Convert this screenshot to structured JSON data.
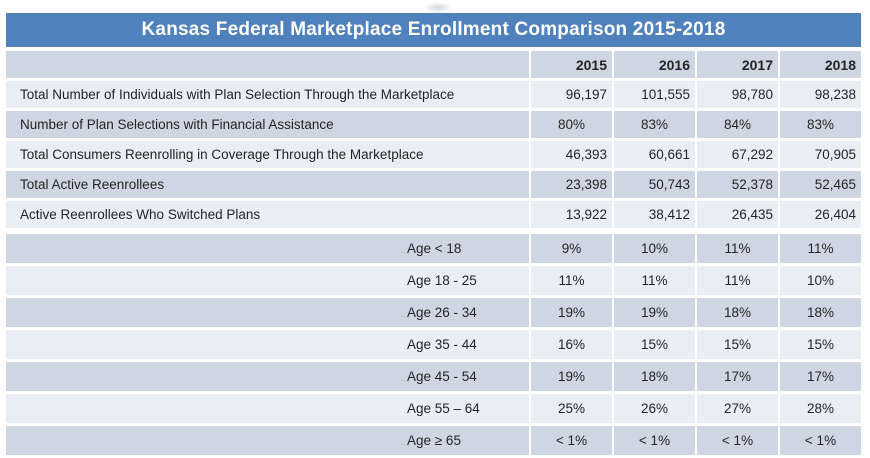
{
  "title": "Kansas Federal Marketplace Enrollment Comparison 2015-2018",
  "colors": {
    "title_bg": "#4F81BD",
    "title_text": "#FFFFFF",
    "band_dark": "#CED6E4",
    "band_light": "#E9EDF4",
    "text": "#242424"
  },
  "chart_data": {
    "type": "table",
    "title": "Kansas Federal Marketplace Enrollment Comparison 2015-2018",
    "columns": [
      "2015",
      "2016",
      "2017",
      "2018"
    ],
    "rows": [
      {
        "label": "Total Number of Individuals with Plan Selection Through the Marketplace",
        "values": [
          "96,197",
          "101,555",
          "98,780",
          "98,238"
        ],
        "format": "number",
        "band": "light",
        "indent": false
      },
      {
        "label": "Number of Plan Selections with Financial Assistance",
        "values": [
          "80%",
          "83%",
          "84%",
          "83%"
        ],
        "format": "percent",
        "band": "dark",
        "indent": false
      },
      {
        "label": "Total Consumers Reenrolling in Coverage Through the Marketplace",
        "values": [
          "46,393",
          "60,661",
          "67,292",
          "70,905"
        ],
        "format": "number",
        "band": "light",
        "indent": false
      },
      {
        "label": "Total Active Reenrollees",
        "values": [
          "23,398",
          "50,743",
          "52,378",
          "52,465"
        ],
        "format": "number",
        "band": "dark",
        "indent": false
      },
      {
        "label": "Active Reenrollees Who Switched Plans",
        "values": [
          "13,922",
          "38,412",
          "26,435",
          "26,404"
        ],
        "format": "number",
        "band": "light",
        "indent": false
      },
      {
        "label": "Age < 18",
        "values": [
          "9%",
          "10%",
          "11%",
          "11%"
        ],
        "format": "percent",
        "band": "dark",
        "indent": true
      },
      {
        "label": "Age 18 - 25",
        "values": [
          "11%",
          "11%",
          "11%",
          "10%"
        ],
        "format": "percent",
        "band": "light",
        "indent": true
      },
      {
        "label": "Age 26 - 34",
        "values": [
          "19%",
          "19%",
          "18%",
          "18%"
        ],
        "format": "percent",
        "band": "dark",
        "indent": true
      },
      {
        "label": "Age 35 - 44",
        "values": [
          "16%",
          "15%",
          "15%",
          "15%"
        ],
        "format": "percent",
        "band": "light",
        "indent": true
      },
      {
        "label": "Age 45 - 54",
        "values": [
          "19%",
          "18%",
          "17%",
          "17%"
        ],
        "format": "percent",
        "band": "dark",
        "indent": true
      },
      {
        "label": "Age 55 – 64",
        "values": [
          "25%",
          "26%",
          "27%",
          "28%"
        ],
        "format": "percent",
        "band": "light",
        "indent": true
      },
      {
        "label": "Age ≥ 65",
        "values": [
          "< 1%",
          "< 1%",
          "< 1%",
          "< 1%"
        ],
        "format": "percent",
        "band": "dark",
        "indent": true
      }
    ]
  }
}
